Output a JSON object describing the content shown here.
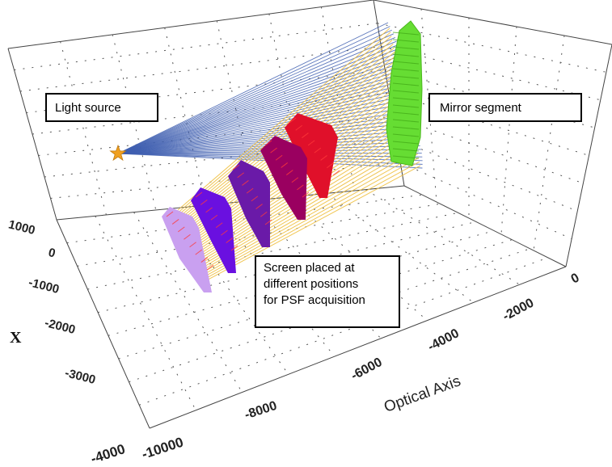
{
  "callouts": {
    "light_source": "Light source",
    "mirror_segment": "Mirror segment",
    "screen_lines": [
      "Screen placed at",
      "different positions",
      "for PSF acquisition"
    ]
  },
  "axes": {
    "x_label": "X",
    "optical_axis_label": "Optical Axis",
    "x_ticks": [
      "1000",
      "0",
      "-1000",
      "-2000",
      "-3000",
      "-4000"
    ],
    "optical_ticks": [
      "-10000",
      "-8000",
      "-6000",
      "-4000",
      "-2000",
      "0"
    ]
  },
  "colors": {
    "incident_rays": "#3f5fb0",
    "reflected_rays": "#f0c040",
    "mirror": "#66dd33",
    "light_source": "#f0a020",
    "screens": [
      "#c9a0f0",
      "#6a10e0",
      "#6a1aa8",
      "#9a0060",
      "#e0102a"
    ],
    "screen_hatch": "#ff3a3a"
  }
}
